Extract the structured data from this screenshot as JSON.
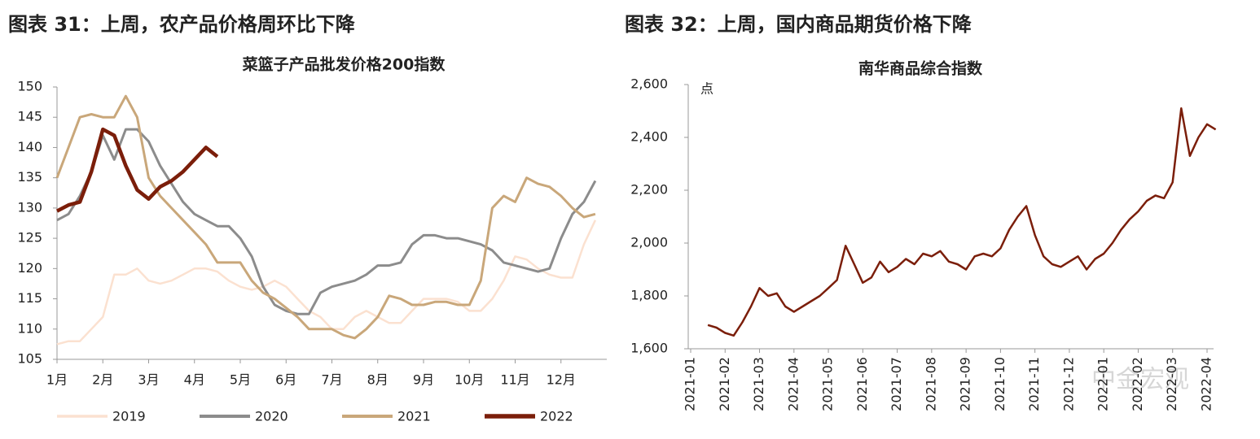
{
  "watermark": "中金宏观",
  "chart_data": [
    {
      "type": "line",
      "figure_title": "图表 31：上周，农产品价格周环比下降",
      "title": "菜篮子产品批发价格200指数",
      "categories": [
        "1月",
        null,
        null,
        null,
        "2月",
        null,
        null,
        null,
        "3月",
        null,
        null,
        null,
        "4月",
        null,
        null,
        null,
        "5月",
        null,
        null,
        null,
        "6月",
        null,
        null,
        null,
        "7月",
        null,
        null,
        null,
        "8月",
        null,
        null,
        null,
        "9月",
        null,
        null,
        null,
        "10月",
        null,
        null,
        null,
        "11月",
        null,
        null,
        null,
        "12月",
        null,
        null,
        null
      ],
      "ylim": [
        105,
        150
      ],
      "yticks": [
        105,
        110,
        115,
        120,
        125,
        130,
        135,
        140,
        145,
        150
      ],
      "legend": "bottom",
      "series": [
        {
          "name": "2019",
          "color": "#fbe1d0",
          "values": [
            107.5,
            108,
            108,
            110,
            112,
            119,
            119,
            120,
            118,
            117.5,
            118,
            119,
            120,
            120,
            119.5,
            118,
            117,
            116.5,
            117,
            118,
            117,
            115,
            113,
            112,
            110,
            110,
            112,
            113,
            112,
            111,
            111,
            113,
            115,
            115,
            115,
            114.5,
            113,
            113,
            115,
            118,
            122,
            121.5,
            120,
            119,
            118.5,
            118.5,
            124,
            128
          ]
        },
        {
          "name": "2020",
          "color": "#8c8c8c",
          "values": [
            128,
            129,
            132,
            136,
            142,
            138,
            143,
            143,
            141,
            137,
            134,
            131,
            129,
            128,
            127,
            127,
            125,
            122,
            117,
            114,
            113,
            112.5,
            112.5,
            116,
            117,
            117.5,
            118,
            119,
            120.5,
            120.5,
            121,
            124,
            125.5,
            125.5,
            125,
            125,
            124.5,
            124,
            123,
            121,
            120.5,
            120,
            119.5,
            120,
            125,
            129,
            131,
            134.5
          ]
        },
        {
          "name": "2021",
          "color": "#c9a77a",
          "values": [
            135,
            140,
            145,
            145.5,
            145,
            145,
            148.5,
            145,
            135,
            132,
            130,
            128,
            126,
            124,
            121,
            121,
            121,
            118,
            116,
            115,
            113.5,
            112,
            110,
            110,
            110,
            109,
            108.5,
            110,
            112,
            115.5,
            115,
            114,
            114,
            114.5,
            114.5,
            114,
            114,
            118,
            130,
            132,
            131,
            135,
            134,
            133.5,
            132,
            130,
            128.5,
            129
          ]
        },
        {
          "name": "2022",
          "color": "#7b1e0a",
          "values": [
            129.5,
            130.5,
            131,
            136,
            143,
            142,
            137,
            133,
            131.5,
            133.5,
            134.5,
            136,
            138,
            140,
            138.5,
            null,
            null,
            null,
            null,
            null,
            null,
            null,
            null,
            null,
            null,
            null,
            null,
            null,
            null,
            null,
            null,
            null,
            null,
            null,
            null,
            null,
            null,
            null,
            null,
            null,
            null,
            null,
            null,
            null,
            null,
            null,
            null,
            null
          ]
        }
      ]
    },
    {
      "type": "line",
      "figure_title": "图表 32：上周，国内商品期货价格下降",
      "title": "南华商品综合指数",
      "y_unit": "点",
      "categories": [
        "2021-01",
        null,
        null,
        null,
        "2021-02",
        null,
        null,
        null,
        "2021-03",
        null,
        null,
        null,
        "2021-04",
        null,
        null,
        null,
        "2021-05",
        null,
        null,
        null,
        "2021-06",
        null,
        null,
        null,
        "2021-07",
        null,
        null,
        null,
        "2021-08",
        null,
        null,
        null,
        "2021-09",
        null,
        null,
        null,
        "2021-10",
        null,
        null,
        null,
        "2021-11",
        null,
        null,
        null,
        "2021-12",
        null,
        null,
        null,
        "2022-01",
        null,
        null,
        null,
        "2022-02",
        null,
        null,
        null,
        "2022-03",
        null,
        null,
        null,
        "2022-04",
        null
      ],
      "ylim": [
        1600,
        2600
      ],
      "yticks": [
        {
          "value": 1600,
          "label": "1,600"
        },
        {
          "value": 1800,
          "label": "1,800"
        },
        {
          "value": 2000,
          "label": "2,000"
        },
        {
          "value": 2200,
          "label": "2,200"
        },
        {
          "value": 2400,
          "label": "2,400"
        },
        {
          "value": 2600,
          "label": "2,600"
        }
      ],
      "color": "#7b1e0a",
      "values": [
        null,
        null,
        1690,
        1680,
        1660,
        1650,
        1700,
        1760,
        1830,
        1800,
        1810,
        1760,
        1740,
        1760,
        1780,
        1800,
        1830,
        1860,
        1990,
        1920,
        1850,
        1870,
        1930,
        1890,
        1910,
        1940,
        1920,
        1960,
        1950,
        1970,
        1930,
        1920,
        1900,
        1950,
        1960,
        1950,
        1980,
        2050,
        2100,
        2140,
        2030,
        1950,
        1920,
        1910,
        1930,
        1950,
        1900,
        1940,
        1960,
        2000,
        2050,
        2090,
        2120,
        2160,
        2180,
        2170,
        2230,
        2510,
        2330,
        2400,
        2450,
        2430
      ]
    }
  ]
}
